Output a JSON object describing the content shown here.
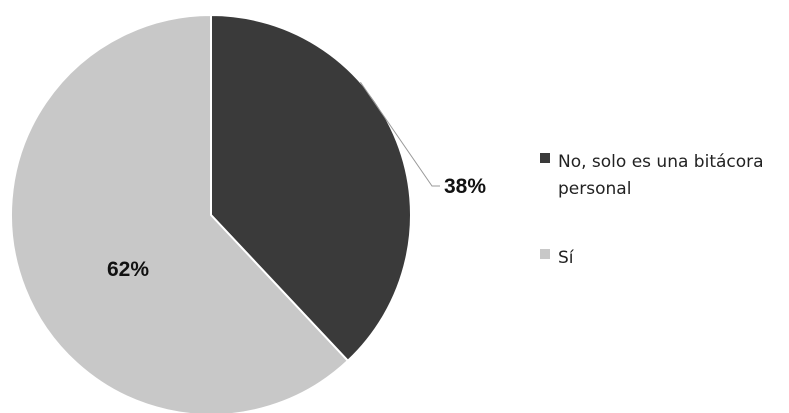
{
  "chart_data": {
    "type": "pie",
    "title": "",
    "slices": [
      {
        "label": "No, solo es una bitácora personal",
        "value": 38,
        "display": "38%",
        "color": "#3a3a3a"
      },
      {
        "label": "Sí",
        "value": 62,
        "display": "62%",
        "color": "#c8c8c8"
      }
    ],
    "legend": {
      "placement": "right",
      "items": [
        {
          "lines": [
            "No, solo es una bitácora",
            "personal"
          ],
          "color": "#3a3a3a"
        },
        {
          "lines": [
            "Sí"
          ],
          "color": "#c8c8c8"
        }
      ]
    }
  }
}
